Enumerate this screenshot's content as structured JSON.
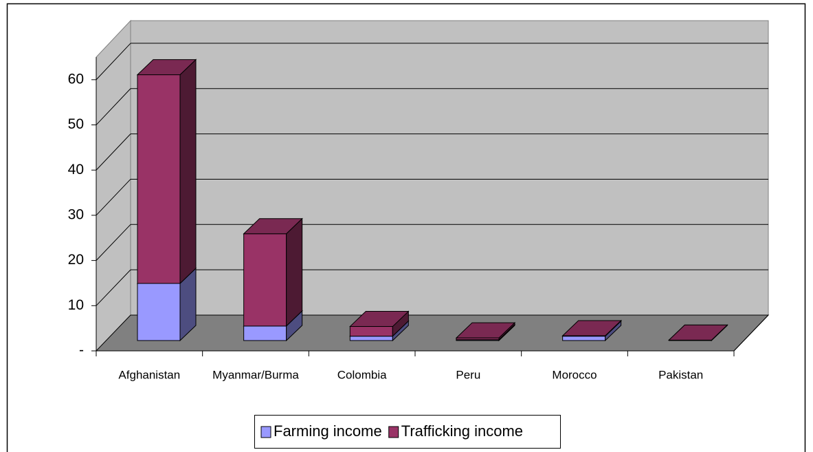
{
  "chart_data": {
    "type": "bar3d_stacked",
    "categories": [
      "Afghanistan",
      "Myanmar/Burma",
      "Colombia",
      "Peru",
      "Morocco",
      "Pakistan"
    ],
    "series": [
      {
        "name": "Farming income",
        "color": "#9999ff",
        "values": [
          13,
          3.3,
          1,
          0.2,
          1,
          0.1
        ]
      },
      {
        "name": "Trafficking income",
        "color": "#993366",
        "values": [
          47.5,
          21,
          2.2,
          0.4,
          0.1,
          0
        ]
      }
    ],
    "ylim": [
      0,
      65
    ],
    "yticks": [
      {
        "value": 0,
        "label": "-"
      },
      10,
      20,
      30,
      40,
      50,
      60
    ],
    "grid": true,
    "legend": "bottom"
  }
}
